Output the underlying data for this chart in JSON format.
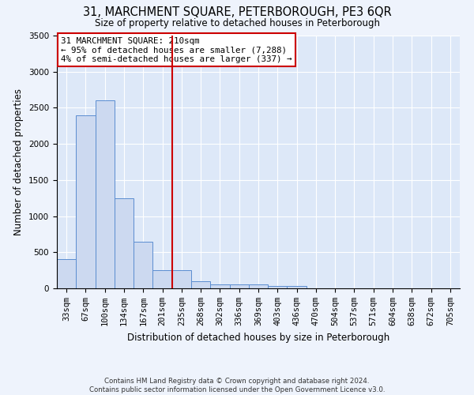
{
  "title": "31, MARCHMENT SQUARE, PETERBOROUGH, PE3 6QR",
  "subtitle": "Size of property relative to detached houses in Peterborough",
  "xlabel": "Distribution of detached houses by size in Peterborough",
  "ylabel": "Number of detached properties",
  "categories": [
    "33sqm",
    "67sqm",
    "100sqm",
    "134sqm",
    "167sqm",
    "201sqm",
    "235sqm",
    "268sqm",
    "302sqm",
    "336sqm",
    "369sqm",
    "403sqm",
    "436sqm",
    "470sqm",
    "504sqm",
    "537sqm",
    "571sqm",
    "604sqm",
    "638sqm",
    "672sqm",
    "705sqm"
  ],
  "values": [
    400,
    2400,
    2600,
    1250,
    640,
    250,
    250,
    100,
    60,
    55,
    50,
    30,
    30,
    0,
    0,
    0,
    0,
    0,
    0,
    0,
    0
  ],
  "bar_color": "#ccd9f0",
  "bar_edge_color": "#5b8dd0",
  "vline_x": 5.5,
  "vline_color": "#cc0000",
  "annotation_title": "31 MARCHMENT SQUARE: 210sqm",
  "annotation_line1": "← 95% of detached houses are smaller (7,288)",
  "annotation_line2": "4% of semi-detached houses are larger (337) →",
  "annotation_box_color": "#ffffff",
  "annotation_box_edge": "#cc0000",
  "ylim": [
    0,
    3500
  ],
  "plot_bg_color": "#dde8f8",
  "fig_bg_color": "#eef3fc",
  "grid_color": "#ffffff",
  "footnote1": "Contains HM Land Registry data © Crown copyright and database right 2024.",
  "footnote2": "Contains public sector information licensed under the Open Government Licence v3.0."
}
